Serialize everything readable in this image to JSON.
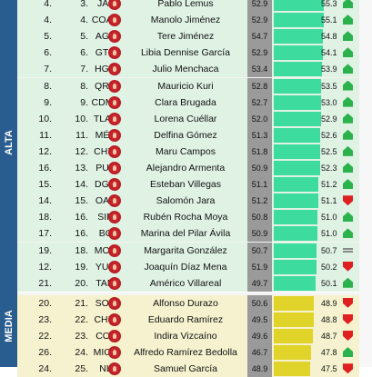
{
  "bands": [
    {
      "label": "ALTA",
      "class": "alta"
    },
    {
      "label": "MEDIA",
      "class": "media"
    }
  ],
  "rows": [
    {
      "prev": "4.",
      "rank": "3.",
      "state": "JAL",
      "name": "Pablo Lemus",
      "score": "52.9",
      "val": "55.3",
      "bar": 0.86,
      "trend": "up",
      "band": "alta"
    },
    {
      "prev": "4.",
      "rank": "4.",
      "state": "COAH",
      "name": "Manolo Jiménez",
      "score": "52.9",
      "val": "55.1",
      "bar": 0.86,
      "trend": "up",
      "band": "alta"
    },
    {
      "prev": "5.",
      "rank": "5.",
      "state": "AGS",
      "name": "Tere Jiménez",
      "score": "54.7",
      "val": "54.8",
      "bar": 0.85,
      "trend": "up",
      "band": "alta"
    },
    {
      "prev": "6.",
      "rank": "6.",
      "state": "GTO",
      "name": "Libia Dennise García",
      "score": "52.9",
      "val": "54.1",
      "bar": 0.84,
      "trend": "up",
      "band": "alta"
    },
    {
      "prev": "7.",
      "rank": "7.",
      "state": "HGO",
      "name": "Julio Menchaca",
      "score": "53.4",
      "val": "53.9",
      "bar": 0.83,
      "trend": "up",
      "band": "alta"
    },
    {
      "prev": "8.",
      "rank": "8.",
      "state": "QRO",
      "name": "Mauricio Kuri",
      "score": "52.8",
      "val": "53.5",
      "bar": 0.82,
      "trend": "up",
      "band": "alta"
    },
    {
      "prev": "9.",
      "rank": "9.",
      "state": "CDMX",
      "name": "Clara Brugada",
      "score": "52.7",
      "val": "53.0",
      "bar": 0.81,
      "trend": "up",
      "band": "alta"
    },
    {
      "prev": "10.",
      "rank": "10.",
      "state": "TLAX",
      "name": "Lorena Cuéllar",
      "score": "52.0",
      "val": "52.9",
      "bar": 0.81,
      "trend": "up",
      "band": "alta"
    },
    {
      "prev": "11.",
      "rank": "11.",
      "state": "MÉX",
      "name": "Delfina Gómez",
      "score": "51.3",
      "val": "52.6",
      "bar": 0.8,
      "trend": "up",
      "band": "alta"
    },
    {
      "prev": "12.",
      "rank": "12.",
      "state": "CHIH",
      "name": "Maru Campos",
      "score": "51.8",
      "val": "52.5",
      "bar": 0.8,
      "trend": "up",
      "band": "alta"
    },
    {
      "prev": "16.",
      "rank": "13.",
      "state": "PUE",
      "name": "Alejandro Armenta",
      "score": "50.9",
      "val": "52.3",
      "bar": 0.79,
      "trend": "up",
      "band": "alta"
    },
    {
      "prev": "15.",
      "rank": "14.",
      "state": "DGO",
      "name": "Esteban Villegas",
      "score": "51.1",
      "val": "51.2",
      "bar": 0.76,
      "trend": "up",
      "band": "alta"
    },
    {
      "prev": "14.",
      "rank": "15.",
      "state": "OAX",
      "name": "Salomón Jara",
      "score": "51.2",
      "val": "51.1",
      "bar": 0.76,
      "trend": "down",
      "band": "alta"
    },
    {
      "prev": "18.",
      "rank": "16.",
      "state": "SIN",
      "name": "Rubén Rocha Moya",
      "score": "50.8",
      "val": "51.0",
      "bar": 0.75,
      "trend": "up",
      "band": "alta"
    },
    {
      "prev": "17.",
      "rank": "16.",
      "state": "BC",
      "name": "Marina del Pilar Ávila",
      "score": "50.9",
      "val": "51.0",
      "bar": 0.75,
      "trend": "up",
      "band": "alta"
    },
    {
      "prev": "19.",
      "rank": "18.",
      "state": "MOR",
      "name": "Margarita González",
      "score": "50.7",
      "val": "50.7",
      "bar": 0.74,
      "trend": "eq",
      "band": "alta"
    },
    {
      "prev": "12.",
      "rank": "19.",
      "state": "YUC",
      "name": "Joaquín Díaz Mena",
      "score": "51.9",
      "val": "50.2",
      "bar": 0.73,
      "trend": "down",
      "band": "alta"
    },
    {
      "prev": "21.",
      "rank": "20.",
      "state": "TAM",
      "name": "Américo Villareal",
      "score": "49.7",
      "val": "50.1",
      "bar": 0.72,
      "trend": "up",
      "band": "alta"
    },
    {
      "prev": "20.",
      "rank": "21.",
      "state": "SON",
      "name": "Alfonso Durazo",
      "score": "50.6",
      "val": "48.9",
      "bar": 0.68,
      "trend": "down",
      "band": "media"
    },
    {
      "prev": "23.",
      "rank": "22.",
      "state": "CHIS",
      "name": "Eduardo Ramírez",
      "score": "49.5",
      "val": "48.8",
      "bar": 0.68,
      "trend": "down",
      "band": "media"
    },
    {
      "prev": "22.",
      "rank": "23.",
      "state": "COL",
      "name": "Indira Vizcaíno",
      "score": "49.6",
      "val": "48.7",
      "bar": 0.67,
      "trend": "down",
      "band": "media"
    },
    {
      "prev": "26.",
      "rank": "24.",
      "state": "MICH",
      "name": "Alfredo Ramírez Bedolla",
      "score": "46.7",
      "val": "47.8",
      "bar": 0.64,
      "trend": "up",
      "band": "media"
    },
    {
      "prev": "24.",
      "rank": "25.",
      "state": "NL",
      "name": "Samuel García",
      "score": "48.9",
      "val": "47.5",
      "bar": 0.63,
      "trend": "down",
      "band": "media"
    }
  ]
}
